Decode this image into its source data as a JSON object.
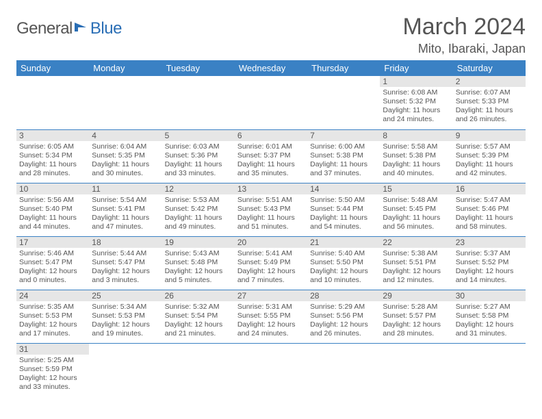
{
  "logo": {
    "part1": "General",
    "part2": "Blue"
  },
  "title": "March 2024",
  "location": "Mito, Ibaraki, Japan",
  "colors": {
    "header_bg": "#3a81c4",
    "header_fg": "#ffffff",
    "daynum_bg": "#e6e6e6",
    "grid_line": "#3a81c4",
    "text": "#555555",
    "logo_blue": "#2a6eb5"
  },
  "weekdays": [
    "Sunday",
    "Monday",
    "Tuesday",
    "Wednesday",
    "Thursday",
    "Friday",
    "Saturday"
  ],
  "weeks": [
    [
      {
        "blank": true
      },
      {
        "blank": true
      },
      {
        "blank": true
      },
      {
        "blank": true
      },
      {
        "blank": true
      },
      {
        "n": "1",
        "sr": "6:08 AM",
        "ss": "5:32 PM",
        "dl": "11 hours and 24 minutes."
      },
      {
        "n": "2",
        "sr": "6:07 AM",
        "ss": "5:33 PM",
        "dl": "11 hours and 26 minutes."
      }
    ],
    [
      {
        "n": "3",
        "sr": "6:05 AM",
        "ss": "5:34 PM",
        "dl": "11 hours and 28 minutes."
      },
      {
        "n": "4",
        "sr": "6:04 AM",
        "ss": "5:35 PM",
        "dl": "11 hours and 30 minutes."
      },
      {
        "n": "5",
        "sr": "6:03 AM",
        "ss": "5:36 PM",
        "dl": "11 hours and 33 minutes."
      },
      {
        "n": "6",
        "sr": "6:01 AM",
        "ss": "5:37 PM",
        "dl": "11 hours and 35 minutes."
      },
      {
        "n": "7",
        "sr": "6:00 AM",
        "ss": "5:38 PM",
        "dl": "11 hours and 37 minutes."
      },
      {
        "n": "8",
        "sr": "5:58 AM",
        "ss": "5:38 PM",
        "dl": "11 hours and 40 minutes."
      },
      {
        "n": "9",
        "sr": "5:57 AM",
        "ss": "5:39 PM",
        "dl": "11 hours and 42 minutes."
      }
    ],
    [
      {
        "n": "10",
        "sr": "5:56 AM",
        "ss": "5:40 PM",
        "dl": "11 hours and 44 minutes."
      },
      {
        "n": "11",
        "sr": "5:54 AM",
        "ss": "5:41 PM",
        "dl": "11 hours and 47 minutes."
      },
      {
        "n": "12",
        "sr": "5:53 AM",
        "ss": "5:42 PM",
        "dl": "11 hours and 49 minutes."
      },
      {
        "n": "13",
        "sr": "5:51 AM",
        "ss": "5:43 PM",
        "dl": "11 hours and 51 minutes."
      },
      {
        "n": "14",
        "sr": "5:50 AM",
        "ss": "5:44 PM",
        "dl": "11 hours and 54 minutes."
      },
      {
        "n": "15",
        "sr": "5:48 AM",
        "ss": "5:45 PM",
        "dl": "11 hours and 56 minutes."
      },
      {
        "n": "16",
        "sr": "5:47 AM",
        "ss": "5:46 PM",
        "dl": "11 hours and 58 minutes."
      }
    ],
    [
      {
        "n": "17",
        "sr": "5:46 AM",
        "ss": "5:47 PM",
        "dl": "12 hours and 0 minutes."
      },
      {
        "n": "18",
        "sr": "5:44 AM",
        "ss": "5:47 PM",
        "dl": "12 hours and 3 minutes."
      },
      {
        "n": "19",
        "sr": "5:43 AM",
        "ss": "5:48 PM",
        "dl": "12 hours and 5 minutes."
      },
      {
        "n": "20",
        "sr": "5:41 AM",
        "ss": "5:49 PM",
        "dl": "12 hours and 7 minutes."
      },
      {
        "n": "21",
        "sr": "5:40 AM",
        "ss": "5:50 PM",
        "dl": "12 hours and 10 minutes."
      },
      {
        "n": "22",
        "sr": "5:38 AM",
        "ss": "5:51 PM",
        "dl": "12 hours and 12 minutes."
      },
      {
        "n": "23",
        "sr": "5:37 AM",
        "ss": "5:52 PM",
        "dl": "12 hours and 14 minutes."
      }
    ],
    [
      {
        "n": "24",
        "sr": "5:35 AM",
        "ss": "5:53 PM",
        "dl": "12 hours and 17 minutes."
      },
      {
        "n": "25",
        "sr": "5:34 AM",
        "ss": "5:53 PM",
        "dl": "12 hours and 19 minutes."
      },
      {
        "n": "26",
        "sr": "5:32 AM",
        "ss": "5:54 PM",
        "dl": "12 hours and 21 minutes."
      },
      {
        "n": "27",
        "sr": "5:31 AM",
        "ss": "5:55 PM",
        "dl": "12 hours and 24 minutes."
      },
      {
        "n": "28",
        "sr": "5:29 AM",
        "ss": "5:56 PM",
        "dl": "12 hours and 26 minutes."
      },
      {
        "n": "29",
        "sr": "5:28 AM",
        "ss": "5:57 PM",
        "dl": "12 hours and 28 minutes."
      },
      {
        "n": "30",
        "sr": "5:27 AM",
        "ss": "5:58 PM",
        "dl": "12 hours and 31 minutes."
      }
    ],
    [
      {
        "n": "31",
        "sr": "5:25 AM",
        "ss": "5:59 PM",
        "dl": "12 hours and 33 minutes."
      },
      {
        "blank": true
      },
      {
        "blank": true
      },
      {
        "blank": true
      },
      {
        "blank": true
      },
      {
        "blank": true
      },
      {
        "blank": true
      }
    ]
  ],
  "labels": {
    "sunrise": "Sunrise:",
    "sunset": "Sunset:",
    "daylight": "Daylight:"
  }
}
